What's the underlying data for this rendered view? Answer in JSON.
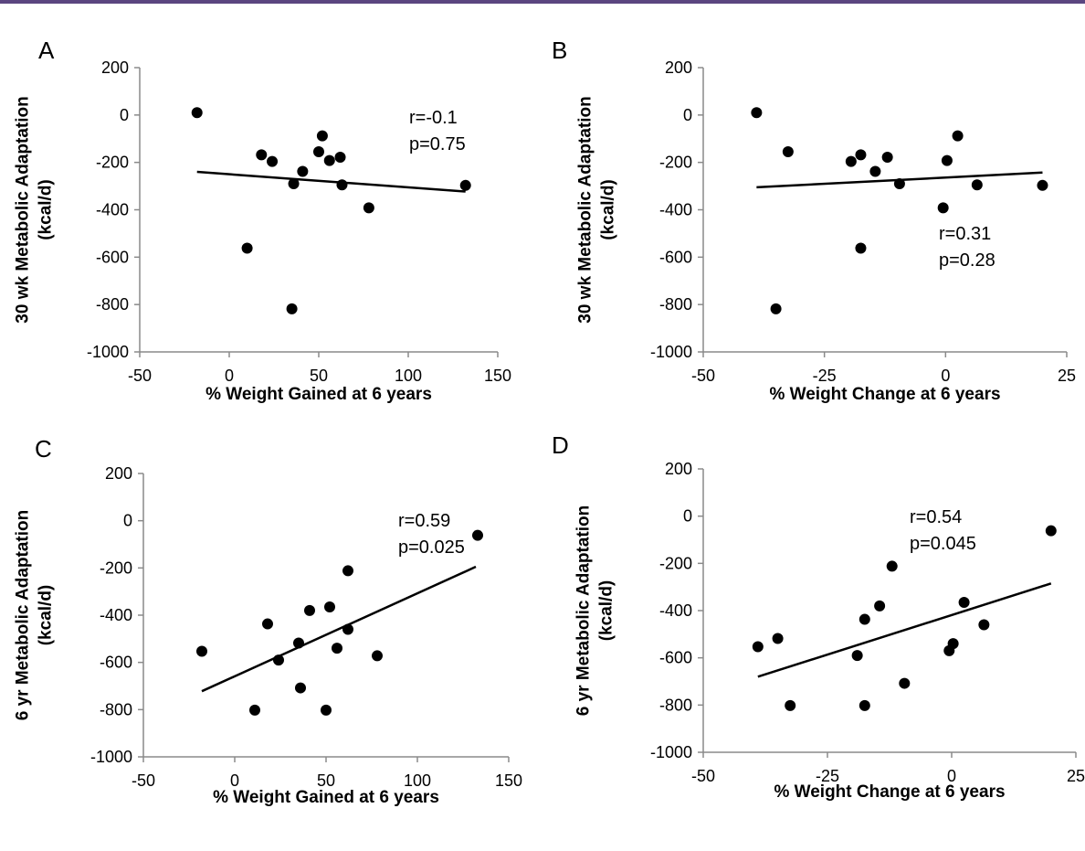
{
  "accent_color": "#5b4680",
  "chart_data": [
    {
      "type": "scatter",
      "panel_label": "A",
      "title": "",
      "xlabel": "% Weight Gained at 6 years",
      "ylabel_line1": "30 wk Metabolic Adaptation",
      "ylabel_line2": "(kcal/d)",
      "xlim": [
        -50,
        150
      ],
      "ylim": [
        -1000,
        200
      ],
      "xticks": [
        -50,
        0,
        50,
        100,
        150
      ],
      "yticks": [
        200,
        0,
        -200,
        -400,
        -600,
        -800,
        -1000
      ],
      "grid": false,
      "points": [
        [
          -18,
          10
        ],
        [
          10,
          -562
        ],
        [
          18,
          -168
        ],
        [
          24,
          -196
        ],
        [
          35,
          -818
        ],
        [
          36,
          -290
        ],
        [
          41,
          -238
        ],
        [
          50,
          -155
        ],
        [
          52,
          -88
        ],
        [
          56,
          -192
        ],
        [
          62,
          -178
        ],
        [
          63,
          -295
        ],
        [
          78,
          -392
        ],
        [
          132,
          -297
        ]
      ],
      "trendline": {
        "x": [
          -18,
          132
        ],
        "y": [
          -240,
          -323
        ]
      },
      "annotation": {
        "r": "r=-0.1",
        "p": "p=0.75"
      }
    },
    {
      "type": "scatter",
      "panel_label": "B",
      "title": "",
      "xlabel": "% Weight Change at 6 years",
      "ylabel_line1": "30 wk Metabolic Adaptation",
      "ylabel_line2": "(kcal/d)",
      "xlim": [
        -50,
        25
      ],
      "ylim": [
        -1000,
        200
      ],
      "xticks": [
        -50,
        -25,
        0,
        25
      ],
      "yticks": [
        200,
        0,
        -200,
        -400,
        -600,
        -800,
        -1000
      ],
      "grid": false,
      "points": [
        [
          -39,
          10
        ],
        [
          -35,
          -818
        ],
        [
          -32.5,
          -155
        ],
        [
          -19.5,
          -196
        ],
        [
          -17.5,
          -168
        ],
        [
          -17.5,
          -562
        ],
        [
          -14.5,
          -238
        ],
        [
          -12,
          -178
        ],
        [
          -9.5,
          -290
        ],
        [
          -0.5,
          -392
        ],
        [
          0.3,
          -192
        ],
        [
          2.5,
          -88
        ],
        [
          6.5,
          -295
        ],
        [
          20,
          -297
        ]
      ],
      "trendline": {
        "x": [
          -39,
          20
        ],
        "y": [
          -305,
          -243
        ]
      },
      "annotation": {
        "r": "r=0.31",
        "p": "p=0.28"
      }
    },
    {
      "type": "scatter",
      "panel_label": "C",
      "title": "",
      "xlabel": "% Weight Gained at 6 years",
      "ylabel_line1": "6 yr Metabolic Adaptation",
      "ylabel_line2": "(kcal/d)",
      "xlim": [
        -50,
        150
      ],
      "ylim": [
        -1000,
        200
      ],
      "xticks": [
        -50,
        0,
        50,
        100,
        150
      ],
      "yticks": [
        200,
        0,
        -200,
        -400,
        -600,
        -800,
        -1000
      ],
      "grid": false,
      "points": [
        [
          -18,
          -553
        ],
        [
          11,
          -802
        ],
        [
          18,
          -437
        ],
        [
          24,
          -590
        ],
        [
          35,
          -518
        ],
        [
          36,
          -708
        ],
        [
          41,
          -380
        ],
        [
          50,
          -802
        ],
        [
          52,
          -365
        ],
        [
          56,
          -540
        ],
        [
          62,
          -212
        ],
        [
          62,
          -460
        ],
        [
          78,
          -572
        ],
        [
          133,
          -62
        ]
      ],
      "trendline": {
        "x": [
          -18,
          132
        ],
        "y": [
          -722,
          -195
        ]
      },
      "annotation": {
        "r": "r=0.59",
        "p": "p=0.025"
      }
    },
    {
      "type": "scatter",
      "panel_label": "D",
      "title": "",
      "xlabel": "% Weight Change at 6 years",
      "ylabel_line1": "6 yr Metabolic Adaptation",
      "ylabel_line2": "(kcal/d)",
      "xlim": [
        -50,
        25
      ],
      "ylim": [
        -1000,
        200
      ],
      "xticks": [
        -50,
        -25,
        0,
        25
      ],
      "yticks": [
        200,
        0,
        -200,
        -400,
        -600,
        -800,
        -1000
      ],
      "grid": false,
      "points": [
        [
          -39,
          -553
        ],
        [
          -35,
          -518
        ],
        [
          -32.5,
          -802
        ],
        [
          -19,
          -590
        ],
        [
          -17.5,
          -437
        ],
        [
          -17.5,
          -802
        ],
        [
          -14.5,
          -380
        ],
        [
          -12,
          -212
        ],
        [
          -9.5,
          -708
        ],
        [
          -0.5,
          -570
        ],
        [
          0.3,
          -540
        ],
        [
          2.5,
          -365
        ],
        [
          6.5,
          -460
        ],
        [
          20,
          -62
        ]
      ],
      "trendline": {
        "x": [
          -39,
          20
        ],
        "y": [
          -680,
          -285
        ]
      },
      "annotation": {
        "r": "r=0.54",
        "p": "p=0.045"
      }
    }
  ]
}
